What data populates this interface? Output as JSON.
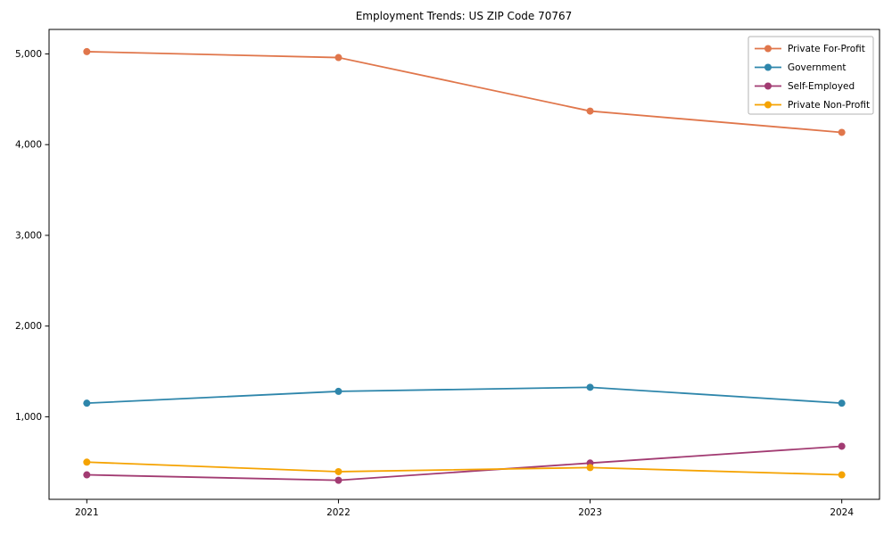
{
  "chart_data": {
    "type": "line",
    "title": "Employment Trends: US ZIP Code 70767",
    "xlabel": "",
    "ylabel": "",
    "x": [
      2021,
      2022,
      2023,
      2024
    ],
    "x_tick_labels": [
      "2021",
      "2022",
      "2023",
      "2024"
    ],
    "yticks": [
      1000,
      2000,
      3000,
      4000,
      5000
    ],
    "y_tick_labels": [
      "1,000",
      "2,000",
      "3,000",
      "4,000",
      "5,000"
    ],
    "xlim": [
      2020.85,
      2024.15
    ],
    "ylim": [
      90,
      5270
    ],
    "grid": false,
    "legend_position": "upper right",
    "series": [
      {
        "name": "Private For-Profit",
        "color": "#E0764B",
        "values": [
          5025,
          4960,
          4370,
          4135
        ]
      },
      {
        "name": "Government",
        "color": "#2E86AB",
        "values": [
          1150,
          1280,
          1325,
          1150
        ]
      },
      {
        "name": "Self-Employed",
        "color": "#A23B72",
        "values": [
          360,
          300,
          490,
          675
        ]
      },
      {
        "name": "Private Non-Profit",
        "color": "#F5A302",
        "values": [
          500,
          395,
          440,
          360
        ]
      }
    ]
  }
}
